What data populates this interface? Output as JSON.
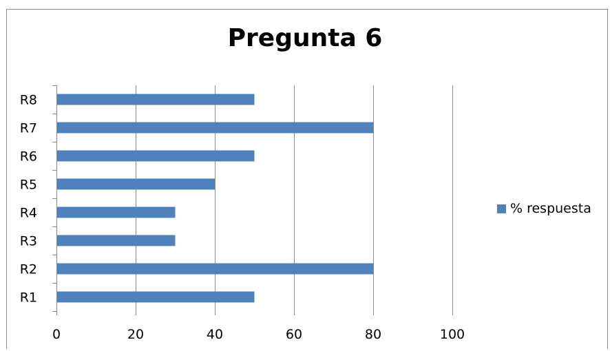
{
  "chart_data": {
    "type": "bar",
    "orientation": "horizontal",
    "title": "Pregunta 6",
    "categories": [
      "R1",
      "R2",
      "R3",
      "R4",
      "R5",
      "R6",
      "R7",
      "R8"
    ],
    "series": [
      {
        "name": "% respuesta",
        "values": [
          50,
          80,
          30,
          30,
          40,
          50,
          80,
          50
        ],
        "color": "#4f81bd"
      }
    ],
    "xlabel": "",
    "ylabel": "",
    "xlim": [
      0,
      100
    ],
    "xticks": [
      "0",
      "20",
      "40",
      "60",
      "80",
      "100"
    ],
    "grid": "vertical",
    "legend": "right"
  }
}
